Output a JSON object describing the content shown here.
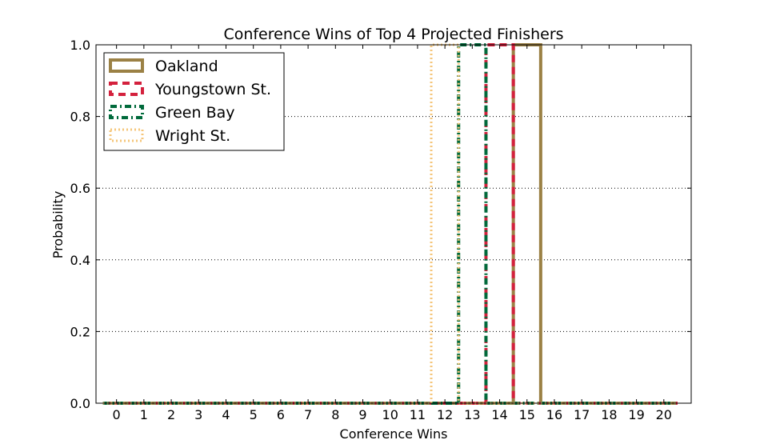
{
  "chart_data": {
    "type": "bar",
    "title": "Conference Wins of Top 4 Projected Finishers",
    "xlabel": "Conference Wins",
    "ylabel": "Probability",
    "categories": [
      0,
      1,
      2,
      3,
      4,
      5,
      6,
      7,
      8,
      9,
      10,
      11,
      12,
      13,
      14,
      15,
      16,
      17,
      18,
      19,
      20
    ],
    "xlim": [
      -0.75,
      21.0
    ],
    "ylim": [
      0.0,
      1.0
    ],
    "yticks": [
      0.0,
      0.2,
      0.4,
      0.6,
      0.8,
      1.0
    ],
    "ytick_labels": [
      "0.0",
      "0.2",
      "0.4",
      "0.6",
      "0.8",
      "1.0"
    ],
    "grid": "y-dotted",
    "legend_position": "top-left",
    "series": [
      {
        "name": "Oakland",
        "color": "#9b8145",
        "style": "solid",
        "values": [
          0,
          0,
          0,
          0,
          0,
          0,
          0,
          0,
          0,
          0,
          0,
          0,
          0,
          0,
          0,
          1,
          0,
          0,
          0,
          0,
          0
        ]
      },
      {
        "name": "Youngstown St.",
        "color": "#d4213d",
        "style": "dashed",
        "values": [
          0,
          0,
          0,
          0,
          0,
          0,
          0,
          0,
          0,
          0,
          0,
          0,
          0,
          0,
          1,
          0,
          0,
          0,
          0,
          0,
          0
        ]
      },
      {
        "name": "Green Bay",
        "color": "#006a3b",
        "style": "dashdot",
        "values": [
          0,
          0,
          0,
          0,
          0,
          0,
          0,
          0,
          0,
          0,
          0,
          0,
          0,
          1,
          0,
          0,
          0,
          0,
          0,
          0,
          0
        ]
      },
      {
        "name": "Wright St.",
        "color": "#f5c67a",
        "style": "dotted",
        "values": [
          0,
          0,
          0,
          0,
          0,
          0,
          0,
          0,
          0,
          0,
          0,
          0,
          1,
          0,
          0,
          0,
          0,
          0,
          0,
          0,
          0
        ]
      }
    ]
  }
}
